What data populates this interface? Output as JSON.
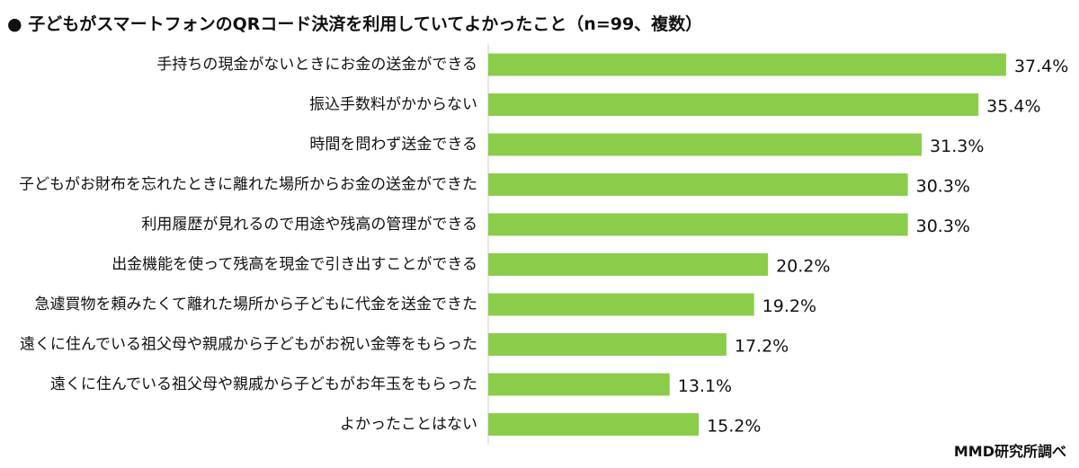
{
  "header": {
    "bullet": "●",
    "title": "子どもがスマートフォンのQRコード決済を利用していてよかったこと（n=99、複数）"
  },
  "footer": {
    "source": "MMD研究所調べ"
  },
  "colors": {
    "bar": "#8ccc4b",
    "axis": "#cccccc",
    "text": "#111111"
  },
  "chart_data": {
    "type": "bar",
    "orientation": "horizontal",
    "title": "子どもがスマートフォンのQRコード決済を利用していてよかったこと（n=99、複数）",
    "categories": [
      "手持ちの現金がないときにお金の送金ができる",
      "振込手数料がかからない",
      "時間を問わず送金できる",
      "子どもがお財布を忘れたときに離れた場所からお金の送金ができた",
      "利用履歴が見れるので用途や残高の管理ができる",
      "出金機能を使って残高を現金で引き出すことができる",
      "急遽買物を頼みたくて離れた場所から子どもに代金を送金できた",
      "遠くに住んでいる祖父母や親戚から子どもがお祝い金等をもらった",
      "遠くに住んでいる祖父母や親戚から子どもがお年玉をもらった",
      "よかったことはない"
    ],
    "values": [
      37.4,
      35.4,
      31.3,
      30.3,
      30.3,
      20.2,
      19.2,
      17.2,
      13.1,
      15.2
    ],
    "value_labels": [
      "37.4%",
      "35.4%",
      "31.3%",
      "30.3%",
      "30.3%",
      "20.2%",
      "19.2%",
      "17.2%",
      "13.1%",
      "15.2%"
    ],
    "unit": "%",
    "xlim": [
      0,
      40
    ],
    "grid": false,
    "legend": "none"
  }
}
